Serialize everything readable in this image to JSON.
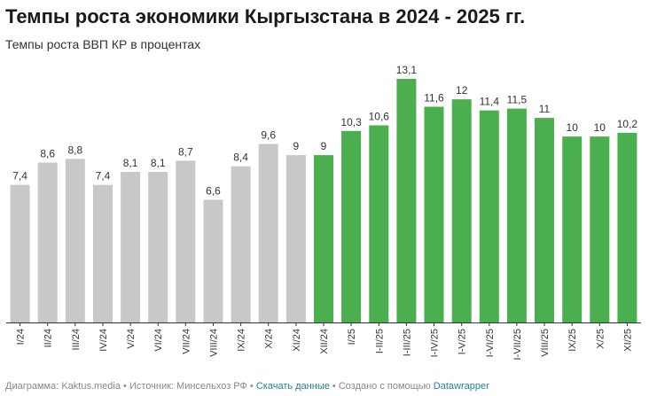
{
  "header": {
    "title": "Темпы роста экономики Кыргызстана в 2024 - 2025 гг.",
    "subtitle": "Темпы роста ВВП КР в процентах"
  },
  "footer": {
    "prefix": "Диаграмма: ",
    "author": "Kaktus.media",
    "sep1": " • ",
    "source_label": "Источник: ",
    "source": "Минсельхоз РФ",
    "sep2": " • ",
    "download": "Скачать данные",
    "sep3": " • ",
    "created": "Создано с помощью ",
    "tool": "Datawrapper"
  },
  "colors": {
    "gray": "#c8c8c8",
    "green": "#4caf4f"
  },
  "chart_data": {
    "type": "bar",
    "title": "Темпы роста экономики Кыргызстана в 2024 - 2025 гг.",
    "subtitle": "Темпы роста ВВП КР в процентах",
    "xlabel": "",
    "ylabel": "",
    "ylim": [
      0,
      13.1
    ],
    "categories": [
      "I/24",
      "II/24",
      "III/24",
      "IV/24",
      "V/24",
      "VI/24",
      "VII/24",
      "VIII/24",
      "IX/24",
      "X/24",
      "XI/24",
      "XII/24",
      "I/25",
      "I-II/25",
      "I-III/25",
      "I-IV/25",
      "I-V/25",
      "I-VI/25",
      "I-VII/25",
      "VIII/25",
      "IX/25",
      "X/25",
      "XI/25"
    ],
    "values": [
      7.4,
      8.6,
      8.8,
      7.4,
      8.1,
      8.1,
      8.7,
      6.6,
      8.4,
      9.6,
      9,
      9,
      10.3,
      10.6,
      13.1,
      11.6,
      12,
      11.4,
      11.5,
      11,
      10,
      10,
      10.2
    ],
    "labels": [
      "7,4",
      "8,6",
      "8,8",
      "7,4",
      "8,1",
      "8,1",
      "8,7",
      "6,6",
      "8,4",
      "9,6",
      "9",
      "9",
      "10,3",
      "10,6",
      "13,1",
      "11,6",
      "12",
      "11,4",
      "11,5",
      "11",
      "10",
      "10",
      "10,2"
    ],
    "series_color": [
      "gray",
      "gray",
      "gray",
      "gray",
      "gray",
      "gray",
      "gray",
      "gray",
      "gray",
      "gray",
      "gray",
      "green",
      "green",
      "green",
      "green",
      "green",
      "green",
      "green",
      "green",
      "green",
      "green",
      "green",
      "green"
    ]
  }
}
